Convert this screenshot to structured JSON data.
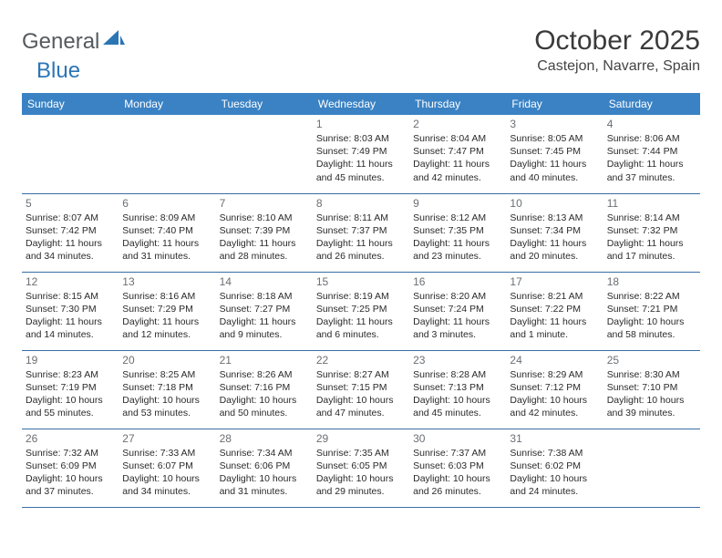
{
  "brand": {
    "part1": "General",
    "part2": "Blue"
  },
  "title": "October 2025",
  "location": "Castejon, Navarre, Spain",
  "colors": {
    "header_bg": "#3a82c4",
    "row_border": "#3a6fa5",
    "brand_gray": "#555a5f",
    "brand_blue": "#2c75b5"
  },
  "dayNames": [
    "Sunday",
    "Monday",
    "Tuesday",
    "Wednesday",
    "Thursday",
    "Friday",
    "Saturday"
  ],
  "weeks": [
    [
      null,
      null,
      null,
      {
        "n": "1",
        "sr": "8:03 AM",
        "ss": "7:49 PM",
        "dl": "11 hours and 45 minutes."
      },
      {
        "n": "2",
        "sr": "8:04 AM",
        "ss": "7:47 PM",
        "dl": "11 hours and 42 minutes."
      },
      {
        "n": "3",
        "sr": "8:05 AM",
        "ss": "7:45 PM",
        "dl": "11 hours and 40 minutes."
      },
      {
        "n": "4",
        "sr": "8:06 AM",
        "ss": "7:44 PM",
        "dl": "11 hours and 37 minutes."
      }
    ],
    [
      {
        "n": "5",
        "sr": "8:07 AM",
        "ss": "7:42 PM",
        "dl": "11 hours and 34 minutes."
      },
      {
        "n": "6",
        "sr": "8:09 AM",
        "ss": "7:40 PM",
        "dl": "11 hours and 31 minutes."
      },
      {
        "n": "7",
        "sr": "8:10 AM",
        "ss": "7:39 PM",
        "dl": "11 hours and 28 minutes."
      },
      {
        "n": "8",
        "sr": "8:11 AM",
        "ss": "7:37 PM",
        "dl": "11 hours and 26 minutes."
      },
      {
        "n": "9",
        "sr": "8:12 AM",
        "ss": "7:35 PM",
        "dl": "11 hours and 23 minutes."
      },
      {
        "n": "10",
        "sr": "8:13 AM",
        "ss": "7:34 PM",
        "dl": "11 hours and 20 minutes."
      },
      {
        "n": "11",
        "sr": "8:14 AM",
        "ss": "7:32 PM",
        "dl": "11 hours and 17 minutes."
      }
    ],
    [
      {
        "n": "12",
        "sr": "8:15 AM",
        "ss": "7:30 PM",
        "dl": "11 hours and 14 minutes."
      },
      {
        "n": "13",
        "sr": "8:16 AM",
        "ss": "7:29 PM",
        "dl": "11 hours and 12 minutes."
      },
      {
        "n": "14",
        "sr": "8:18 AM",
        "ss": "7:27 PM",
        "dl": "11 hours and 9 minutes."
      },
      {
        "n": "15",
        "sr": "8:19 AM",
        "ss": "7:25 PM",
        "dl": "11 hours and 6 minutes."
      },
      {
        "n": "16",
        "sr": "8:20 AM",
        "ss": "7:24 PM",
        "dl": "11 hours and 3 minutes."
      },
      {
        "n": "17",
        "sr": "8:21 AM",
        "ss": "7:22 PM",
        "dl": "11 hours and 1 minute."
      },
      {
        "n": "18",
        "sr": "8:22 AM",
        "ss": "7:21 PM",
        "dl": "10 hours and 58 minutes."
      }
    ],
    [
      {
        "n": "19",
        "sr": "8:23 AM",
        "ss": "7:19 PM",
        "dl": "10 hours and 55 minutes."
      },
      {
        "n": "20",
        "sr": "8:25 AM",
        "ss": "7:18 PM",
        "dl": "10 hours and 53 minutes."
      },
      {
        "n": "21",
        "sr": "8:26 AM",
        "ss": "7:16 PM",
        "dl": "10 hours and 50 minutes."
      },
      {
        "n": "22",
        "sr": "8:27 AM",
        "ss": "7:15 PM",
        "dl": "10 hours and 47 minutes."
      },
      {
        "n": "23",
        "sr": "8:28 AM",
        "ss": "7:13 PM",
        "dl": "10 hours and 45 minutes."
      },
      {
        "n": "24",
        "sr": "8:29 AM",
        "ss": "7:12 PM",
        "dl": "10 hours and 42 minutes."
      },
      {
        "n": "25",
        "sr": "8:30 AM",
        "ss": "7:10 PM",
        "dl": "10 hours and 39 minutes."
      }
    ],
    [
      {
        "n": "26",
        "sr": "7:32 AM",
        "ss": "6:09 PM",
        "dl": "10 hours and 37 minutes."
      },
      {
        "n": "27",
        "sr": "7:33 AM",
        "ss": "6:07 PM",
        "dl": "10 hours and 34 minutes."
      },
      {
        "n": "28",
        "sr": "7:34 AM",
        "ss": "6:06 PM",
        "dl": "10 hours and 31 minutes."
      },
      {
        "n": "29",
        "sr": "7:35 AM",
        "ss": "6:05 PM",
        "dl": "10 hours and 29 minutes."
      },
      {
        "n": "30",
        "sr": "7:37 AM",
        "ss": "6:03 PM",
        "dl": "10 hours and 26 minutes."
      },
      {
        "n": "31",
        "sr": "7:38 AM",
        "ss": "6:02 PM",
        "dl": "10 hours and 24 minutes."
      },
      null
    ]
  ],
  "labels": {
    "sunrise": "Sunrise:",
    "sunset": "Sunset:",
    "daylight": "Daylight:"
  }
}
